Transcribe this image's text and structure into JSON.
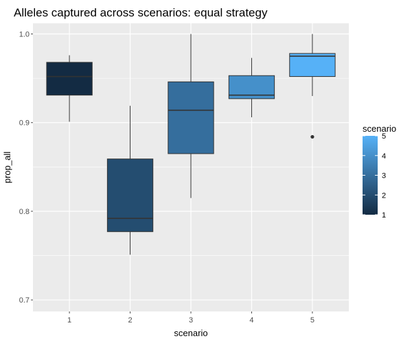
{
  "chart_data": {
    "type": "boxplot",
    "title": "Alleles captured across scenarios: equal strategy",
    "xlabel": "scenario",
    "ylabel": "prop_all",
    "categories": [
      "1",
      "2",
      "3",
      "4",
      "5"
    ],
    "ylim": [
      0.687,
      1.012
    ],
    "y_ticks": [
      0.7,
      0.8,
      0.9,
      1.0
    ],
    "y_tick_labels": [
      "0.7",
      "0.8",
      "0.9",
      "1.0"
    ],
    "grid": true,
    "boxes": [
      {
        "category": "1",
        "min": 0.901,
        "q1": 0.931,
        "median": 0.952,
        "q3": 0.968,
        "max": 0.976,
        "outliers": []
      },
      {
        "category": "2",
        "min": 0.751,
        "q1": 0.777,
        "median": 0.792,
        "q3": 0.859,
        "max": 0.919,
        "outliers": []
      },
      {
        "category": "3",
        "min": 0.815,
        "q1": 0.865,
        "median": 0.914,
        "q3": 0.946,
        "max": 1.0,
        "outliers": []
      },
      {
        "category": "4",
        "min": 0.906,
        "q1": 0.927,
        "median": 0.931,
        "q3": 0.953,
        "max": 0.973,
        "outliers": []
      },
      {
        "category": "5",
        "min": 0.93,
        "q1": 0.952,
        "median": 0.975,
        "q3": 0.978,
        "max": 1.0,
        "outliers": [
          0.884
        ]
      }
    ],
    "legend": {
      "title": "scenario",
      "placement": "right",
      "type": "continuous",
      "range": [
        1,
        5
      ],
      "labels": [
        "1",
        "2",
        "3",
        "4",
        "5"
      ],
      "colors": [
        "#132B43",
        "#56B1F7"
      ]
    },
    "colors": {
      "panel_background": "#EBEBEB",
      "major_grid": "#FFFFFF",
      "box_outline": "#333333",
      "tick_color": "#4D4D4D"
    }
  }
}
